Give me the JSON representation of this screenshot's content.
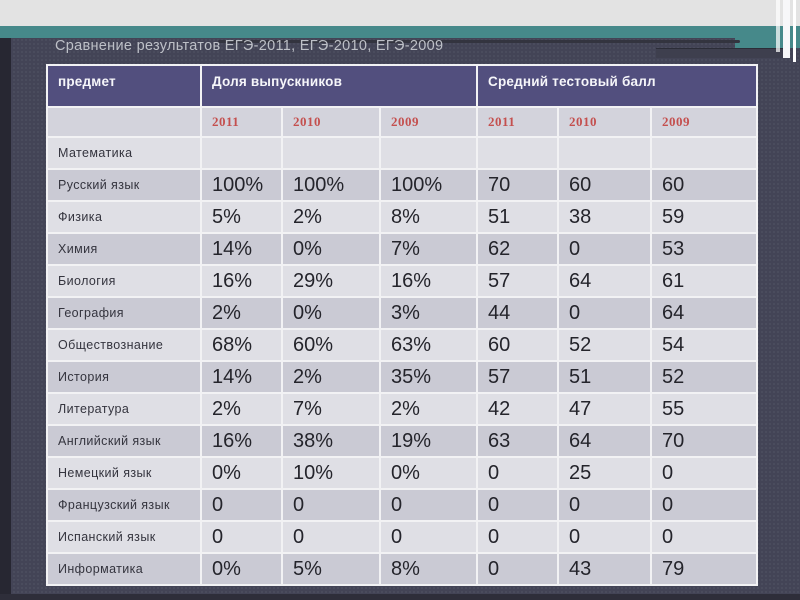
{
  "slide": {
    "title": "Сравнение результатов ЕГЭ-2011, ЕГЭ-2010, ЕГЭ-2009"
  },
  "table": {
    "subject_header": "предмет",
    "group_headers": [
      "Доля выпускников",
      "Средний тестовый балл"
    ],
    "year_labels": [
      "2011",
      "2010",
      "2009",
      "2011",
      "2010",
      "2009"
    ],
    "rows": [
      {
        "subject": "Математика",
        "values": [
          "",
          "",
          "",
          "",
          "",
          ""
        ]
      },
      {
        "subject": "Русский язык",
        "values": [
          "100%",
          "100%",
          "100%",
          "70",
          "60",
          "60"
        ]
      },
      {
        "subject": "Физика",
        "values": [
          "5%",
          "2%",
          "8%",
          "51",
          "38",
          "59"
        ]
      },
      {
        "subject": "Химия",
        "values": [
          "14%",
          "0%",
          "7%",
          "62",
          "0",
          "53"
        ]
      },
      {
        "subject": "Биология",
        "values": [
          "16%",
          "29%",
          "16%",
          "57",
          "64",
          "61"
        ]
      },
      {
        "subject": "География",
        "values": [
          "2%",
          "0%",
          "3%",
          "44",
          "0",
          "64"
        ]
      },
      {
        "subject": "Обществознание",
        "values": [
          "68%",
          "60%",
          "63%",
          "60",
          "52",
          "54"
        ]
      },
      {
        "subject": "История",
        "values": [
          "14%",
          "2%",
          "35%",
          "57",
          "51",
          "52"
        ]
      },
      {
        "subject": "Литература",
        "values": [
          "2%",
          "7%",
          "2%",
          "42",
          "47",
          "55"
        ]
      },
      {
        "subject": "Английский язык",
        "values": [
          "16%",
          "38%",
          "19%",
          "63",
          "64",
          "70"
        ]
      },
      {
        "subject": "Немецкий язык",
        "values": [
          "0%",
          "10%",
          "0%",
          "0",
          "25",
          "0"
        ]
      },
      {
        "subject": "Французский язык",
        "values": [
          "0",
          "0",
          "0",
          "0",
          "0",
          "0"
        ]
      },
      {
        "subject": "Испанский язык",
        "values": [
          "0",
          "0",
          "0",
          "0",
          "0",
          "0"
        ]
      },
      {
        "subject": "Информатика",
        "values": [
          "0%",
          "5%",
          "8%",
          "0",
          "43",
          "79"
        ]
      }
    ]
  },
  "colors": {
    "accent_teal": "#46898a",
    "panel_dark": "#434456",
    "header_purple": "#524f7e",
    "year_red": "#c4504f",
    "row_light": "#dfdfe5",
    "row_dark": "#cacad4"
  }
}
